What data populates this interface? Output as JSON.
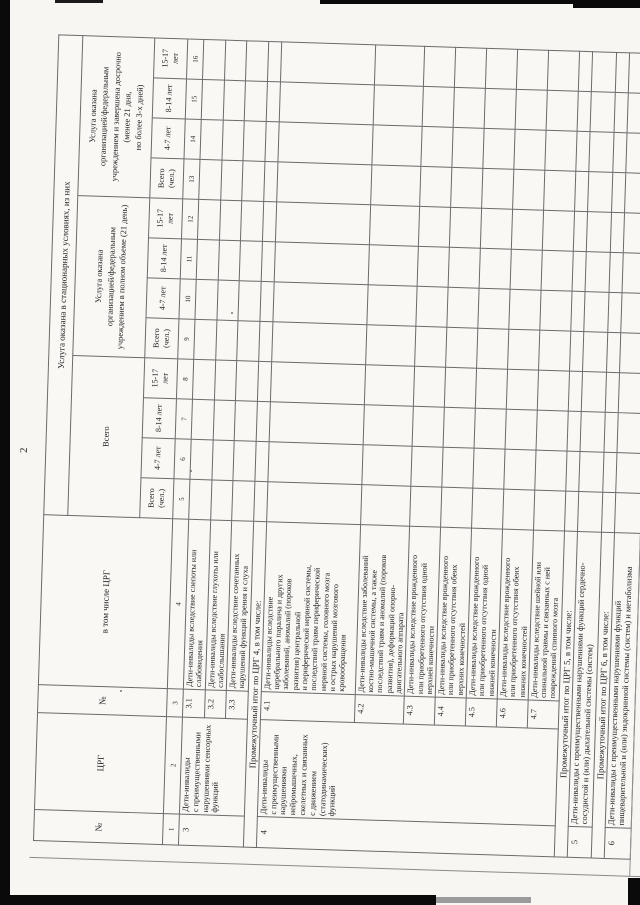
{
  "page": {
    "number": "2"
  },
  "scan": {
    "background": "#f7f6f3",
    "ink": "#1e1e1e",
    "grid_color": "#6b6b6b",
    "edge_color": "#0a0a0a",
    "pen_mark": "г"
  },
  "table": {
    "corner_headers": [
      {
        "label": "№",
        "col_num": "1"
      },
      {
        "label": "ЦРГ",
        "col_num": "2"
      },
      {
        "label": "№",
        "col_num": "3"
      },
      {
        "label": "в том числе ЦРГ",
        "col_num": "4"
      }
    ],
    "top_header": "Услуга оказана в стационарных условиях, из них",
    "groups": [
      {
        "label": "Всего",
        "columns": [
          {
            "label": "Всего\n(чел.)",
            "num": "5"
          },
          {
            "label": "4-7 лет",
            "num": "6"
          },
          {
            "label": "8-14 лет",
            "num": "7"
          },
          {
            "label": "15-17\nлет",
            "num": "8"
          }
        ]
      },
      {
        "label": "Услуга оказана\nорганизацией/федеральным\nучреждением в полном объеме (21 день)",
        "columns": [
          {
            "label": "Всего\n(чел.)",
            "num": "9"
          },
          {
            "label": "4-7 лет",
            "num": "10"
          },
          {
            "label": "8-14 лет",
            "num": "11"
          },
          {
            "label": "15-17\nлет",
            "num": "12"
          }
        ]
      },
      {
        "label": "Услуга оказана\nорганизацией/федеральным\nучреждением и завершена досрочно\n(менее 21 дня,\nно более 3-х дней)",
        "columns": [
          {
            "label": "Всего\n(чел.)",
            "num": "13"
          },
          {
            "label": "4-7 лет",
            "num": "14"
          },
          {
            "label": "8-14 лет",
            "num": "15"
          },
          {
            "label": "15-17\nлет",
            "num": "16"
          }
        ]
      }
    ],
    "rows": [
      {
        "type": "data",
        "no": "3",
        "crg": "Дети-инвалиды\nс преимущественными\nнарушениями сенсорных\nфункций",
        "group_rows": 3,
        "sub_no": "3.1",
        "description": "Дети-инвалиды вследствие слепоты или\nслабовидения",
        "values": [
          "",
          "",
          "",
          "",
          "",
          "",
          "",
          "",
          "",
          "",
          "",
          ""
        ]
      },
      {
        "type": "data",
        "sub_no": "3.2",
        "description": "Дети-инвалиды вследствие глухоты или\nслабослышания",
        "values": [
          "",
          "",
          "",
          "",
          "",
          "",
          "",
          "",
          "",
          "",
          "",
          ""
        ]
      },
      {
        "type": "data",
        "sub_no": "3.3",
        "description": "Дети-инвалиды вследствие сочетанных\nнарушений функций зрения и слуха",
        "values": [
          "",
          "",
          "",
          "",
          "",
          "",
          "",
          "",
          "",
          "",
          "",
          ""
        ]
      },
      {
        "type": "subtotal",
        "label": "Промежуточный итог по ЦРГ 4, в том числе:",
        "values": [
          "",
          "",
          "",
          "",
          "",
          "",
          "",
          "",
          "",
          "",
          "",
          ""
        ]
      },
      {
        "type": "data",
        "no": "4",
        "crg": "Дети-инвалиды\nс преимущественными\nнарушениями\nнейромышечных,\nскелетных и связанных\nс движением\n(статодинамических)\nфункций",
        "group_rows": 7,
        "sub_no": "4.1",
        "description": "Дети-инвалиды вследствие\nцеребрального паралича и других\nзаболеваний, аномалий (пороков\nразвития) центральной\nи периферической нервной системы,\nпоследствий травм периферической\nнервной системы, головного мозга\nи острых нарушений мозгового\nкровообращения",
        "values": [
          "",
          "",
          "",
          "",
          "",
          "",
          "",
          "",
          "",
          "",
          "",
          ""
        ]
      },
      {
        "type": "data",
        "sub_no": "4.2",
        "description": "Дети-инвалиды вследствие заболеваний\nкостно-мышечной системы, а также\nпоследствий травм и аномалий (пороков\nразвития), деформаций опорно-\nдвигательного аппарата",
        "values": [
          "",
          "",
          "",
          "",
          "",
          "",
          "",
          "",
          "",
          "",
          "",
          ""
        ]
      },
      {
        "type": "data",
        "sub_no": "4.3",
        "description": "Дети-инвалиды вследствие врожденного\nили приобретенного отсутствия одной\nверхней конечности",
        "values": [
          "",
          "",
          "",
          "",
          "",
          "",
          "",
          "",
          "",
          "",
          "",
          ""
        ]
      },
      {
        "type": "data",
        "sub_no": "4.4",
        "description": "Дети-инвалиды вследствие врожденного\nили приобретенного отсутствия обеих\nверхних конечностей",
        "values": [
          "",
          "",
          "",
          "",
          "",
          "",
          "",
          "",
          "",
          "",
          "",
          ""
        ]
      },
      {
        "type": "data",
        "sub_no": "4.5",
        "description": "Дети-инвалиды вследствие врожденного\nили приобретенного отсутствия одной\nнижней конечности",
        "values": [
          "",
          "",
          "",
          "",
          "",
          "",
          "",
          "",
          "",
          "",
          "",
          ""
        ]
      },
      {
        "type": "data",
        "sub_no": "4.6",
        "description": "Дети-инвалиды вследствие врожденного\nили приобретенного отсутствия обеих\nнижних конечностей",
        "values": [
          "",
          "",
          "",
          "",
          "",
          "",
          "",
          "",
          "",
          "",
          "",
          ""
        ]
      },
      {
        "type": "data",
        "sub_no": "4.7",
        "description": "Дети-инвалиды вследствие шейной или\nспинальной травмы и связанных с ней\nповреждений спинного мозга",
        "values": [
          "",
          "",
          "",
          "",
          "",
          "",
          "",
          "",
          "",
          "",
          "",
          ""
        ]
      },
      {
        "type": "subtotal",
        "label": "Промежуточный итог по ЦРГ 5, в том числе:",
        "values": [
          "",
          "",
          "",
          "",
          "",
          "",
          "",
          "",
          "",
          "",
          "",
          ""
        ]
      },
      {
        "type": "wide",
        "no": "5",
        "description": "Дети-инвалиды с преимущественными нарушениями функций сердечно-\nсосудистой и (или) дыхательной системы (систем)",
        "values": [
          "",
          "",
          "",
          "",
          "",
          "",
          "",
          "",
          "",
          "",
          "",
          ""
        ]
      },
      {
        "type": "subtotal",
        "label": "Промежуточный итог по ЦРГ 6, в том числе:",
        "values": [
          "",
          "",
          "",
          "",
          "",
          "",
          "",
          "",
          "",
          "",
          "",
          ""
        ]
      },
      {
        "type": "wide",
        "no": "6",
        "description": "Дети-инвалиды с преимущественными нарушениями функций\nпищеварительной и (или) эндокринной системы (систем) и метаболизма",
        "values": [
          "",
          "",
          "",
          "",
          "",
          "",
          "",
          "",
          "",
          "",
          "",
          ""
        ]
      }
    ]
  }
}
